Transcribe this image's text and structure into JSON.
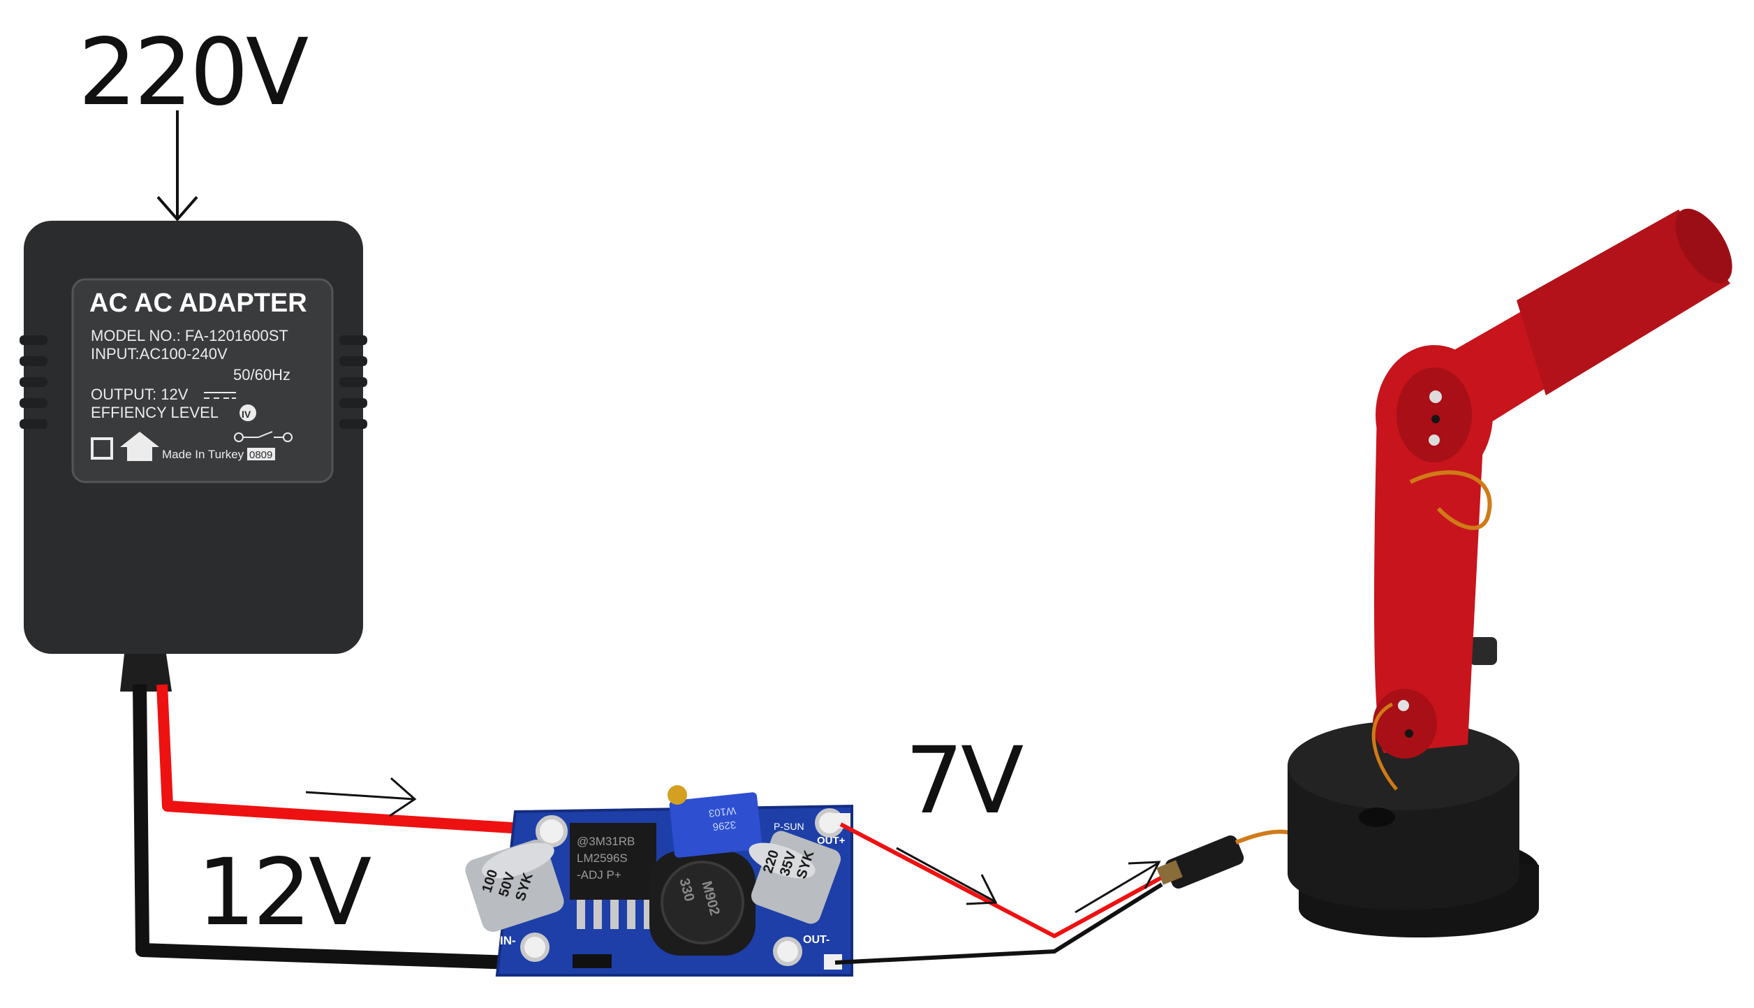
{
  "labels": {
    "input_voltage": "220V",
    "adapter_output_voltage": "12V",
    "converter_output_voltage": "7V"
  },
  "adapter": {
    "title": "AC AC ADAPTER",
    "model": "MODEL NO.: FA-1201600ST",
    "input": "INPUT:AC100-240V",
    "frequency": "50/60Hz",
    "output": "OUTPUT: 12V",
    "efficiency": "EFFIENCY LEVEL",
    "efficiency_mark": "IV",
    "origin": "Made In Turkey",
    "date_code": "0809"
  },
  "converter": {
    "chip_text_1": "@3M31RB",
    "chip_text_2": "LM2596S",
    "chip_text_3": "-ADJ P+",
    "cap_in_1": "100",
    "cap_in_2": "50V",
    "cap_in_3": "SYK",
    "cap_out_1": "220",
    "cap_out_2": "35V",
    "cap_out_3": "SYK",
    "inductor_1": "330",
    "inductor_2": "M902",
    "pot_text_1": "W103",
    "pot_text_2": "3296",
    "pad_in_minus": "IN-",
    "pad_out_plus": "OUT+",
    "pad_out_minus": "OUT-",
    "pad_label": "P-SUN"
  },
  "colors": {
    "wire_positive": "#ee1111",
    "wire_negative": "#111111",
    "adapter_body": "#2b2c2e",
    "pcb": "#1e3fa8",
    "robot_arm": "#c8141c",
    "robot_base": "#1a1a1a"
  }
}
